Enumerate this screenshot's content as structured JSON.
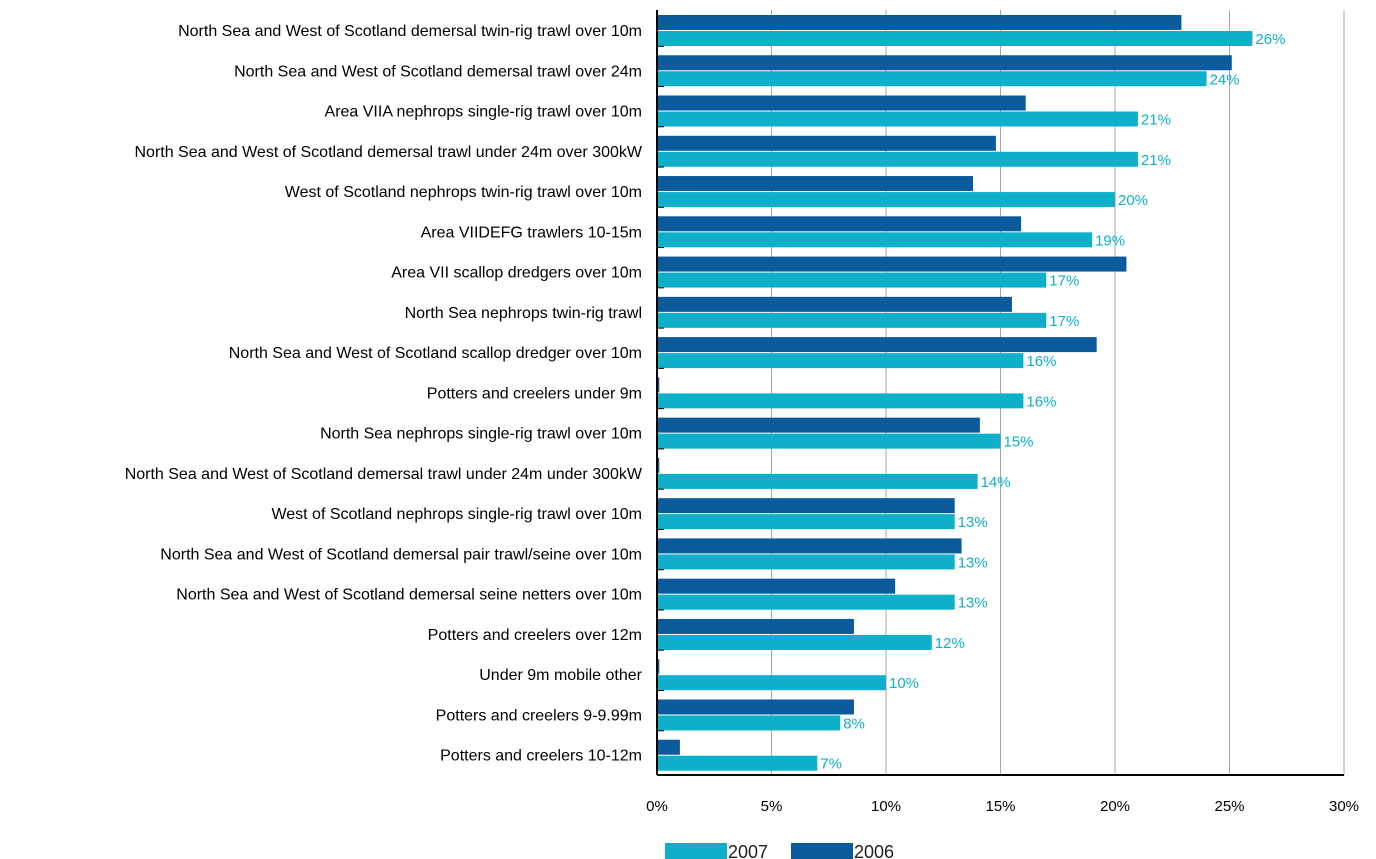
{
  "chart_data": {
    "type": "bar",
    "orientation": "horizontal",
    "title": "",
    "xlabel": "",
    "ylabel": "",
    "xlim": [
      0,
      30
    ],
    "x_ticks": [
      0,
      5,
      10,
      15,
      20,
      25,
      30
    ],
    "x_tick_format": "percent",
    "grid": "vertical",
    "legend_position": "bottom",
    "categories": [
      "North Sea and West of Scotland demersal twin-rig trawl over 10m",
      "North Sea and West of Scotland demersal trawl over 24m",
      "Area VIIA nephrops single-rig trawl over 10m",
      "North Sea and West of Scotland demersal trawl under 24m over 300kW",
      "West of Scotland nephrops twin-rig trawl over 10m",
      "Area VIIDEFG trawlers 10-15m",
      "Area VII scallop dredgers over 10m",
      "North Sea nephrops twin-rig trawl",
      "North Sea and West of Scotland scallop dredger over 10m",
      "Potters and creelers under 9m",
      "North Sea nephrops single-rig trawl over 10m",
      "North Sea and West of Scotland demersal trawl under 24m under 300kW",
      "West of Scotland nephrops single-rig trawl over 10m",
      "North Sea and West of Scotland demersal pair trawl/seine over 10m",
      "North Sea and West of Scotland demersal seine netters over 10m",
      "Potters and creelers over 12m",
      "Under 9m mobile other",
      "Potters and creelers 9-9.99m",
      "Potters and creelers 10-12m"
    ],
    "series": [
      {
        "name": "2006",
        "color": "#0a5a9c",
        "values": [
          22.9,
          25.1,
          16.1,
          14.8,
          13.8,
          15.9,
          20.5,
          15.5,
          19.2,
          0.1,
          14.1,
          0.1,
          13.0,
          13.3,
          10.4,
          8.6,
          0.1,
          8.6,
          1.0
        ]
      },
      {
        "name": "2007",
        "color": "#0db0c8",
        "values": [
          26,
          24,
          21,
          21,
          20,
          19,
          17,
          17,
          16,
          16,
          15,
          14,
          13,
          13,
          13,
          12,
          10,
          8,
          7
        ],
        "data_labels": [
          "26%",
          "24%",
          "21%",
          "21%",
          "20%",
          "19%",
          "17%",
          "17%",
          "16%",
          "16%",
          "15%",
          "14%",
          "13%",
          "13%",
          "13%",
          "12%",
          "10%",
          "8%",
          "7%"
        ]
      }
    ],
    "legend": [
      {
        "name": "2007",
        "color": "#0db0c8"
      },
      {
        "name": "2006",
        "color": "#0a5a9c"
      }
    ]
  }
}
